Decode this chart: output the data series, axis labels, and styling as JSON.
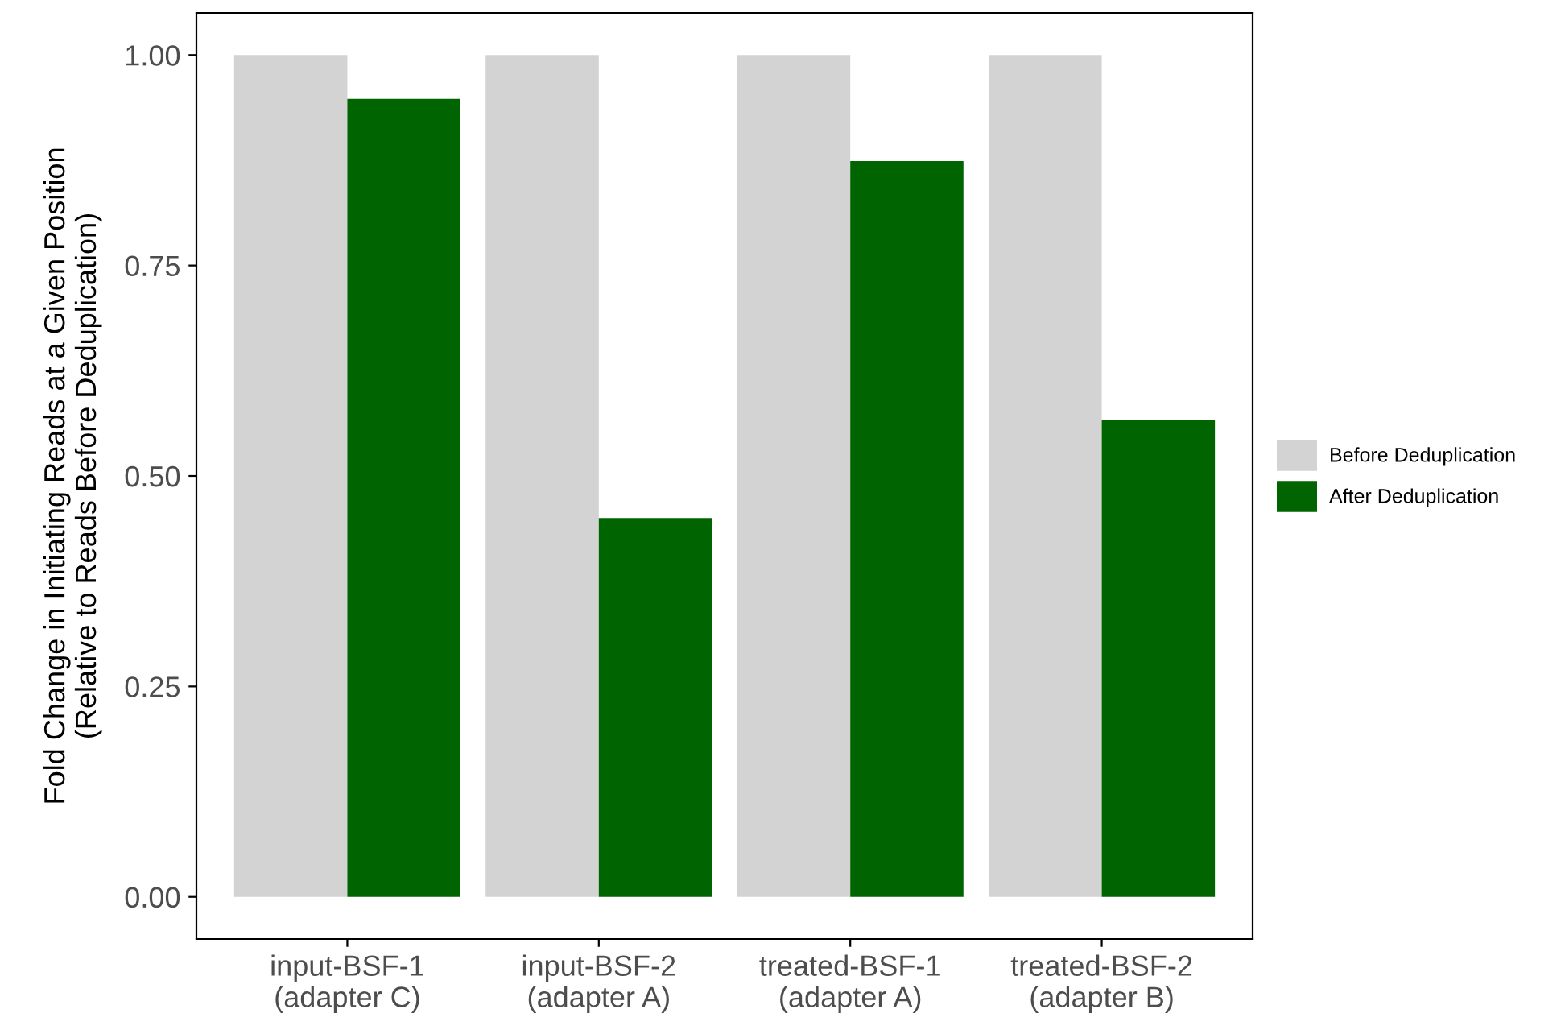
{
  "chart_data": {
    "type": "bar",
    "ylabel": "Fold Change in Initiating Reads at a Given Position\n(Relative to Reads Before Deduplication)",
    "categories": [
      "input-BSF-1\n(adapter C)",
      "input-BSF-2\n(adapter A)",
      "treated-BSF-1\n(adapter A)",
      "treated-BSF-2\n(adapter B)"
    ],
    "series": [
      {
        "name": "Before Deduplication",
        "color": "#d3d3d3",
        "values": [
          1.0,
          1.0,
          1.0,
          1.0
        ]
      },
      {
        "name": "After Deduplication",
        "color": "#006400",
        "values": [
          0.948,
          0.45,
          0.874,
          0.567
        ]
      }
    ],
    "ylim": [
      -0.05,
      1.05
    ],
    "yticks": [
      {
        "value": 0,
        "label": "0.00"
      },
      {
        "value": 0.25,
        "label": "0.25"
      },
      {
        "value": 0.5,
        "label": "0.50"
      },
      {
        "value": 0.75,
        "label": "0.75"
      },
      {
        "value": 1,
        "label": "1.00"
      }
    ],
    "grid": false,
    "legend": "right"
  }
}
